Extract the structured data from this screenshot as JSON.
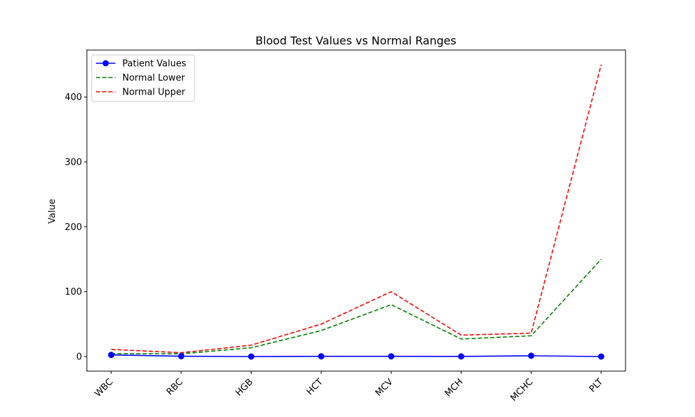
{
  "chart_data": {
    "type": "line",
    "title": "Blood Test Values vs Normal Ranges",
    "xlabel": "",
    "ylabel": "Value",
    "categories": [
      "WBC",
      "RBC",
      "HGB",
      "HCT",
      "MCV",
      "MCH",
      "MCHC",
      "PLT"
    ],
    "ylim": [
      -22.5,
      472.5
    ],
    "yticks": [
      0,
      100,
      200,
      300,
      400
    ],
    "grid": false,
    "legend_position": "top-left",
    "series": [
      {
        "name": "Patient Values",
        "values": [
          2.5,
          0.5,
          0,
          0.3,
          0.3,
          0.2,
          1.2,
          0
        ],
        "color": "#0000ff",
        "style": "solid",
        "marker": "circle"
      },
      {
        "name": "Normal Lower",
        "values": [
          4.5,
          4.2,
          13.5,
          40,
          80,
          27,
          32,
          150
        ],
        "color": "#008000",
        "style": "dashed",
        "marker": "none"
      },
      {
        "name": "Normal Upper",
        "values": [
          11,
          5.9,
          17.5,
          50,
          100,
          33,
          36,
          450
        ],
        "color": "#ff0000",
        "style": "dashed",
        "marker": "none"
      }
    ]
  }
}
